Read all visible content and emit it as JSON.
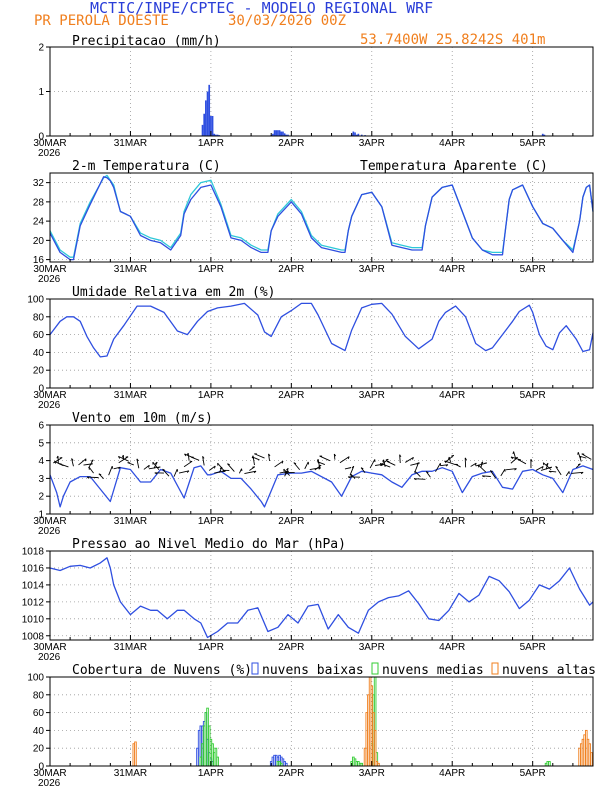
{
  "header": {
    "title": "MCTIC/INPE/CPTEC - MODELO REGIONAL WRF",
    "location": "PR PEROLA DOESTE",
    "run": "30/03/2026 00Z",
    "coords": "53.7400W 25.8242S 401m"
  },
  "colors": {
    "title": "#2a3ed8",
    "orange": "#f07f1e",
    "blue": "#2f4fe0",
    "cyan": "#2ec8d8",
    "green": "#33cc33",
    "grid": "#9a9a9a"
  },
  "day_labels": [
    "30MAR",
    "31MAR",
    "1APR",
    "2APR",
    "3APR",
    "4APR",
    "5APR"
  ],
  "year_label": "2026",
  "chart_data": [
    {
      "id": "precip",
      "type": "bar",
      "title": "Precipitacao (mm/h)",
      "ylim": [
        0,
        2
      ],
      "yticks": [
        0,
        1,
        2
      ],
      "series": [
        {
          "name": "Precipitacao",
          "color": "#2f4fe0",
          "x": [
            45.5,
            46,
            46.5,
            47,
            47.5,
            48,
            48.5,
            49,
            49.5,
            50,
            50.5,
            66,
            66.5,
            67,
            67.5,
            68,
            68.5,
            69,
            69.5,
            70,
            70.5,
            71,
            90,
            90.5,
            91,
            91.5,
            92,
            93,
            94,
            147,
            147.5
          ],
          "values": [
            0.25,
            0.5,
            0.8,
            1.0,
            1.15,
            0.45,
            0.45,
            0.05,
            0.03,
            0.03,
            0.02,
            0.02,
            0.05,
            0.13,
            0.13,
            0.13,
            0.13,
            0.1,
            0.1,
            0.06,
            0.03,
            0.03,
            0.03,
            0.1,
            0.08,
            0.03,
            0.05,
            0.03,
            0.02,
            0.05,
            0.03
          ]
        }
      ]
    },
    {
      "id": "temp",
      "type": "line",
      "title": "2-m Temperatura (C)",
      "legend": "Temperatura Aparente (C)",
      "ylim": [
        15.5,
        34
      ],
      "yticks": [
        16,
        20,
        24,
        28,
        32
      ],
      "series": [
        {
          "name": "Temperatura Aparente (C)",
          "color": "#2ec8d8",
          "x": [
            0,
            3,
            6,
            7,
            9,
            12,
            16,
            17,
            18,
            19,
            21,
            24,
            27,
            30,
            33,
            36,
            39,
            40,
            42,
            45,
            48,
            51,
            54,
            57,
            60,
            63,
            65,
            66,
            68,
            72,
            75,
            78,
            81,
            84,
            87,
            88,
            89,
            90,
            93,
            96,
            99,
            102,
            105,
            108,
            111,
            112,
            114,
            117,
            120,
            123,
            126,
            129,
            132,
            135,
            136,
            137,
            138,
            141,
            144,
            147,
            150,
            153,
            156,
            158,
            159,
            160,
            161,
            162
          ],
          "values": [
            22,
            18,
            16.5,
            16.5,
            23.5,
            28,
            33,
            33.5,
            32.5,
            31.5,
            26,
            25,
            21.5,
            20.5,
            20,
            18.5,
            21.5,
            26,
            29.5,
            32,
            32.5,
            27.5,
            21,
            20.5,
            19,
            18,
            18,
            22,
            25.5,
            28.5,
            26,
            21,
            19,
            18.5,
            18,
            18,
            22,
            25,
            29.5,
            30,
            27,
            19.5,
            19,
            18.5,
            18.5,
            23,
            29,
            31,
            31.5,
            26,
            20.5,
            18,
            17.5,
            17.5,
            23,
            28.5,
            30.5,
            31.5,
            27,
            23.5,
            22.5,
            20,
            18,
            24,
            29,
            31,
            31.5,
            26
          ]
        },
        {
          "name": "2-m Temperatura",
          "color": "#2f4fe0",
          "x": [
            0,
            3,
            6,
            7,
            9,
            12,
            16,
            17,
            18,
            19,
            21,
            24,
            27,
            30,
            33,
            36,
            39,
            40,
            42,
            45,
            48,
            51,
            54,
            57,
            60,
            63,
            65,
            66,
            68,
            72,
            75,
            78,
            81,
            84,
            87,
            88,
            89,
            90,
            93,
            96,
            99,
            102,
            105,
            108,
            111,
            112,
            114,
            117,
            120,
            123,
            126,
            129,
            132,
            135,
            136,
            137,
            138,
            141,
            144,
            147,
            150,
            153,
            156,
            158,
            159,
            160,
            161,
            162
          ],
          "values": [
            21.5,
            17.5,
            16,
            16,
            23,
            27.5,
            33.2,
            33,
            32.4,
            31,
            26,
            25,
            21,
            20,
            19.5,
            18,
            21,
            25.5,
            28.5,
            31,
            31.5,
            27,
            20.5,
            20,
            18.5,
            17.5,
            17.5,
            22,
            25,
            28,
            25.5,
            20.5,
            18.5,
            18,
            17.5,
            17.5,
            22,
            25,
            29.5,
            30,
            27,
            19,
            18.5,
            18,
            18,
            23,
            29,
            31,
            31.5,
            26,
            20.5,
            18,
            17,
            17,
            23,
            28.5,
            30.5,
            31.5,
            27,
            23.5,
            22.5,
            20,
            17.5,
            24,
            29,
            31,
            31.5,
            26
          ]
        }
      ]
    },
    {
      "id": "rh",
      "type": "line",
      "title": "Umidade Relativa em 2m (%)",
      "ylim": [
        0,
        100
      ],
      "yticks": [
        0,
        20,
        40,
        60,
        80,
        100
      ],
      "series": [
        {
          "name": "Umidade Relativa",
          "color": "#2f4fe0",
          "x": [
            0,
            3,
            5,
            7,
            9,
            11,
            13,
            15,
            17,
            19,
            22,
            26,
            30,
            34,
            38,
            41,
            44,
            47,
            50,
            54,
            58,
            62,
            64,
            66,
            69,
            72,
            75,
            78,
            80,
            84,
            88,
            90,
            93,
            96,
            99,
            102,
            106,
            110,
            114,
            116,
            118,
            121,
            124,
            127,
            130,
            132,
            135,
            138,
            140,
            143,
            144,
            146,
            148,
            150,
            152,
            154,
            156,
            157,
            159,
            161,
            162
          ],
          "values": [
            60,
            75,
            80,
            80,
            75,
            58,
            45,
            35,
            36,
            55,
            70,
            92,
            92,
            85,
            64,
            60,
            75,
            86,
            90,
            92,
            95,
            82,
            63,
            58,
            80,
            87,
            95,
            95,
            82,
            50,
            42,
            65,
            90,
            94,
            95,
            83,
            58,
            44,
            55,
            75,
            85,
            92,
            80,
            50,
            42,
            45,
            60,
            75,
            86,
            93,
            85,
            60,
            47,
            43,
            62,
            70,
            60,
            55,
            41,
            43,
            62
          ]
        }
      ]
    },
    {
      "id": "wind",
      "type": "line",
      "title": "Vento em 10m (m/s)",
      "ylim": [
        1,
        6
      ],
      "yticks": [
        1,
        2,
        3,
        4,
        5,
        6
      ],
      "series": [
        {
          "name": "Vento",
          "color": "#2f4fe0",
          "x": [
            0,
            2,
            3,
            4,
            6,
            9,
            12,
            18,
            21,
            24,
            27,
            30,
            33,
            36,
            40,
            43,
            45,
            47,
            48,
            51,
            54,
            57,
            60,
            63,
            64,
            66,
            68,
            72,
            75,
            78,
            84,
            87,
            90,
            93,
            96,
            99,
            102,
            105,
            108,
            111,
            114,
            117,
            120,
            123,
            126,
            129,
            132,
            135,
            138,
            141,
            144,
            147,
            150,
            153,
            156,
            159,
            162
          ],
          "values": [
            3.2,
            2.2,
            1.4,
            2.0,
            2.8,
            3.1,
            3.1,
            1.7,
            3.6,
            3.5,
            2.8,
            2.8,
            3.5,
            3.3,
            1.9,
            3.6,
            3.7,
            3.2,
            3.2,
            3.4,
            3.0,
            3.0,
            2.4,
            1.7,
            1.4,
            2.3,
            3.2,
            3.3,
            3.3,
            3.4,
            2.8,
            2.0,
            3.1,
            3.4,
            3.3,
            3.2,
            2.8,
            2.5,
            3.2,
            3.4,
            3.4,
            3.6,
            3.4,
            2.2,
            3.1,
            3.3,
            3.4,
            2.5,
            2.4,
            3.4,
            3.5,
            3.2,
            3.0,
            2.2,
            3.5,
            3.7,
            3.5
          ]
        }
      ]
    },
    {
      "id": "pressure",
      "type": "line",
      "title": "Pressao ao Nivel Medio do Mar (hPa)",
      "ylim": [
        1007.5,
        1018
      ],
      "yticks": [
        1008,
        1010,
        1012,
        1014,
        1016,
        1018
      ],
      "series": [
        {
          "name": "Pressao",
          "color": "#2f4fe0",
          "x": [
            0,
            3,
            6,
            9,
            12,
            15,
            17,
            18,
            19,
            21,
            24,
            27,
            30,
            32,
            35,
            38,
            40,
            43,
            45,
            47,
            50,
            53,
            56,
            59,
            62,
            65,
            68,
            71,
            74,
            77,
            80,
            83,
            86,
            89,
            92,
            95,
            98,
            101,
            104,
            107,
            110,
            113,
            116,
            119,
            122,
            125,
            128,
            131,
            134,
            137,
            140,
            143,
            146,
            149,
            152,
            155,
            158,
            161,
            162
          ],
          "values": [
            1016,
            1015.7,
            1016.2,
            1016.3,
            1016,
            1016.6,
            1017.2,
            1016,
            1014,
            1012,
            1010.5,
            1011.5,
            1011,
            1011,
            1010,
            1011,
            1011,
            1010,
            1009.5,
            1007.8,
            1008.5,
            1009.5,
            1009.5,
            1011,
            1011.3,
            1008.5,
            1009,
            1010.5,
            1009.5,
            1011.5,
            1011.7,
            1008.8,
            1010.5,
            1009,
            1008.3,
            1011,
            1012,
            1012.5,
            1012.7,
            1013.3,
            1011.8,
            1010,
            1009.8,
            1011,
            1013,
            1012,
            1012.8,
            1015,
            1014.5,
            1013.2,
            1011.2,
            1012.2,
            1014,
            1013.5,
            1014.5,
            1016,
            1013.5,
            1011.6,
            1012
          ]
        }
      ]
    },
    {
      "id": "clouds",
      "type": "bar",
      "title": "Cobertura de Nuvens (%)",
      "legend": [
        "nuvens baixas",
        "nuvens medias",
        "nuvens altas"
      ],
      "ylim": [
        0,
        100
      ],
      "yticks": [
        0,
        20,
        40,
        60,
        80,
        100
      ],
      "series": [
        {
          "name": "nuvens baixas",
          "color": "#2f4fe0",
          "x": [
            44,
            44.5,
            45,
            45.5,
            46,
            46.5,
            47,
            47.5,
            48,
            48.5,
            66,
            66.5,
            67,
            67.5,
            68,
            68.5,
            69,
            69.5,
            70,
            70.5
          ],
          "values": [
            20,
            40,
            45,
            45,
            50,
            60,
            30,
            15,
            8,
            5,
            5,
            10,
            12,
            12,
            10,
            12,
            10,
            8,
            5,
            3
          ]
        },
        {
          "name": "nuvens medias",
          "color": "#33cc33",
          "x": [
            45,
            45.5,
            46,
            46.5,
            47,
            47.5,
            48,
            48.5,
            49,
            49.5,
            50,
            68,
            68.5,
            69,
            90,
            90.5,
            91,
            91.5,
            92,
            92.5,
            93,
            96,
            96.5,
            97,
            97.5,
            148,
            148.5,
            149
          ],
          "values": [
            10,
            25,
            45,
            60,
            65,
            45,
            30,
            25,
            15,
            20,
            10,
            5,
            5,
            3,
            5,
            10,
            8,
            5,
            5,
            3,
            3,
            25,
            80,
            100,
            15,
            3,
            5,
            5
          ]
        },
        {
          "name": "nuvens altas",
          "color": "#f07f1e",
          "x": [
            25,
            25.5,
            94,
            94.5,
            95,
            95.5,
            96,
            96.5,
            97,
            97.5,
            98,
            158,
            158.5,
            159,
            159.5,
            160,
            160.5,
            161,
            161.5
          ],
          "values": [
            25,
            27,
            20,
            60,
            80,
            100,
            90,
            60,
            40,
            5,
            3,
            20,
            25,
            30,
            35,
            40,
            30,
            25,
            15
          ]
        }
      ]
    }
  ]
}
